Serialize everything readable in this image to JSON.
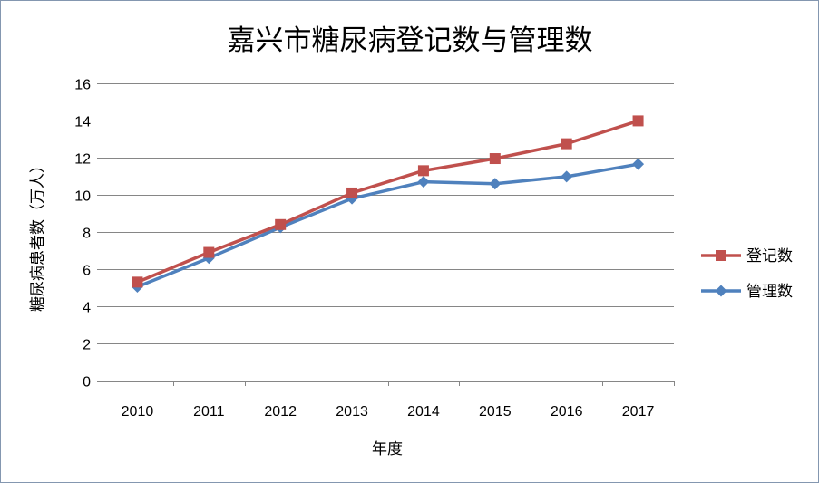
{
  "chart_data": {
    "type": "line",
    "title": "嘉兴市糖尿病登记数与管理数",
    "xlabel": "年度",
    "ylabel": "糖尿病患者数（万人）",
    "categories": [
      "2010",
      "2011",
      "2012",
      "2013",
      "2014",
      "2015",
      "2016",
      "2017"
    ],
    "ylim": [
      0,
      16
    ],
    "yticks": [
      0,
      2,
      4,
      6,
      8,
      10,
      12,
      14,
      16
    ],
    "grid": true,
    "legend_position": "right",
    "series": [
      {
        "name": "登记数",
        "marker": "square",
        "color": "#c0504d",
        "values": [
          5.3,
          6.9,
          8.4,
          10.1,
          11.3,
          11.95,
          12.75,
          13.98
        ]
      },
      {
        "name": "管理数",
        "marker": "diamond",
        "color": "#4f81bd",
        "values": [
          5.05,
          6.6,
          8.25,
          9.8,
          10.7,
          10.6,
          10.98,
          11.65
        ]
      }
    ]
  }
}
